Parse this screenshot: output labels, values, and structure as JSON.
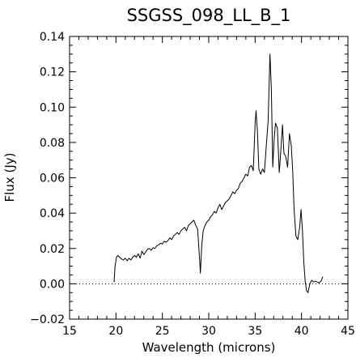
{
  "chart_data": {
    "type": "line",
    "title": "SSGSS_098_LL_B_1",
    "xlabel": "Wavelength (microns)",
    "ylabel": "Flux (Jy)",
    "xlim": [
      15,
      45
    ],
    "ylim": [
      -0.02,
      0.14
    ],
    "xticks": [
      15,
      20,
      25,
      30,
      35,
      40,
      45
    ],
    "yticks": [
      -0.02,
      0.0,
      0.02,
      0.04,
      0.06,
      0.08,
      0.1,
      0.12,
      0.14
    ],
    "ytick_labels": [
      "−0.02",
      "0.00",
      "0.02",
      "0.04",
      "0.06",
      "0.08",
      "0.10",
      "0.12",
      "0.14"
    ],
    "reference_line": {
      "y": 0.0,
      "style": "dotted"
    },
    "grid": false,
    "series": [
      {
        "x": [
          19.8,
          19.9,
          20.05,
          20.2,
          20.4,
          20.6,
          20.8,
          21.0,
          21.2,
          21.4,
          21.6,
          21.8,
          22.0,
          22.2,
          22.4,
          22.6,
          22.8,
          23.0,
          23.2,
          23.4,
          23.6,
          23.8,
          24.0,
          24.2,
          24.4,
          24.6,
          24.8,
          25.0,
          25.2,
          25.4,
          25.6,
          25.8,
          26.0,
          26.2,
          26.4,
          26.6,
          26.8,
          27.0,
          27.2,
          27.4,
          27.6,
          27.8,
          28.0,
          28.2,
          28.4,
          28.6,
          28.8,
          29.0,
          29.1,
          29.25,
          29.4,
          29.6,
          29.8,
          30.0,
          30.2,
          30.4,
          30.6,
          30.8,
          31.0,
          31.2,
          31.4,
          31.6,
          31.8,
          32.0,
          32.2,
          32.4,
          32.6,
          32.8,
          33.0,
          33.2,
          33.4,
          33.6,
          33.8,
          34.0,
          34.2,
          34.4,
          34.6,
          34.8,
          35.0,
          35.1,
          35.25,
          35.4,
          35.6,
          35.8,
          36.0,
          36.2,
          36.4,
          36.6,
          36.75,
          36.9,
          37.05,
          37.2,
          37.4,
          37.6,
          37.7,
          37.8,
          37.95,
          38.1,
          38.3,
          38.5,
          38.7,
          38.9,
          39.05,
          39.2,
          39.4,
          39.6,
          39.8,
          39.95,
          40.1,
          40.25,
          40.4,
          40.55,
          40.7,
          40.9,
          41.1,
          41.3,
          41.5,
          41.7,
          41.9,
          42.1,
          42.3
        ],
        "y": [
          0.001,
          0.01,
          0.015,
          0.016,
          0.015,
          0.014,
          0.0135,
          0.0145,
          0.013,
          0.0145,
          0.0135,
          0.015,
          0.016,
          0.015,
          0.017,
          0.0145,
          0.0185,
          0.0165,
          0.018,
          0.0195,
          0.02,
          0.019,
          0.0205,
          0.02,
          0.0215,
          0.022,
          0.023,
          0.0225,
          0.024,
          0.0235,
          0.0245,
          0.026,
          0.025,
          0.027,
          0.028,
          0.029,
          0.028,
          0.03,
          0.031,
          0.032,
          0.03,
          0.033,
          0.034,
          0.035,
          0.036,
          0.033,
          0.031,
          0.015,
          0.006,
          0.022,
          0.03,
          0.033,
          0.035,
          0.036,
          0.038,
          0.039,
          0.041,
          0.04,
          0.043,
          0.045,
          0.042,
          0.044,
          0.046,
          0.047,
          0.048,
          0.05,
          0.052,
          0.051,
          0.053,
          0.054,
          0.057,
          0.058,
          0.06,
          0.062,
          0.061,
          0.066,
          0.067,
          0.064,
          0.091,
          0.098,
          0.086,
          0.065,
          0.062,
          0.065,
          0.063,
          0.078,
          0.092,
          0.13,
          0.11,
          0.066,
          0.082,
          0.091,
          0.088,
          0.063,
          0.07,
          0.078,
          0.09,
          0.074,
          0.072,
          0.066,
          0.085,
          0.078,
          0.064,
          0.042,
          0.027,
          0.025,
          0.032,
          0.042,
          0.03,
          0.012,
          0.001,
          -0.004,
          -0.005,
          0.0,
          0.002,
          0.001,
          0.0015,
          0.001,
          0.0005,
          0.0015,
          0.004
        ]
      }
    ]
  }
}
